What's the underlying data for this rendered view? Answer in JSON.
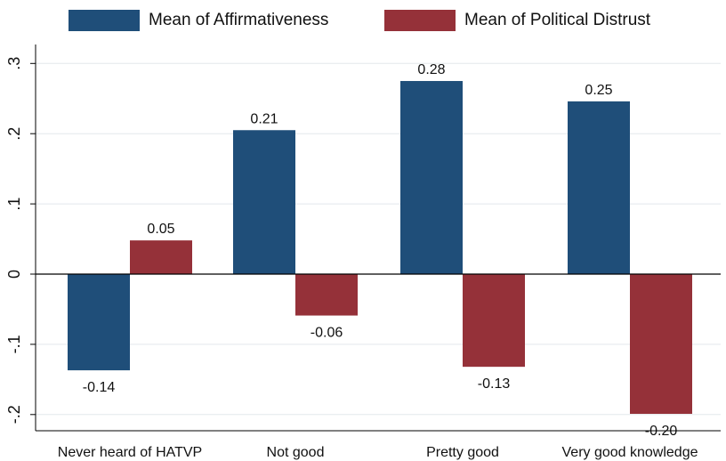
{
  "chart_data": {
    "type": "bar",
    "categories": [
      "Never heard of HATVP",
      "Not good",
      "Pretty good",
      "Very good knowledge"
    ],
    "series": [
      {
        "name": "Mean of Affirmativeness",
        "values": [
          -0.137,
          0.205,
          0.275,
          0.246
        ],
        "labels": [
          "-0.14",
          "0.21",
          "0.28",
          "0.25"
        ],
        "color": "#1f4e79"
      },
      {
        "name": "Mean of Political Distrust",
        "values": [
          0.048,
          -0.059,
          -0.132,
          -0.199
        ],
        "labels": [
          "0.05",
          "-0.06",
          "-0.13",
          "-0.20"
        ],
        "color": "#953139"
      }
    ],
    "ylim": [
      -0.22,
      0.3
    ],
    "yticks": [
      -0.2,
      -0.1,
      0,
      0.1,
      0.2,
      0.3
    ],
    "ytick_labels": [
      "-.2",
      "-.1",
      "0",
      ".1",
      ".2",
      ".3"
    ],
    "grid": true,
    "legend_position": "top",
    "title": "",
    "xlabel": "",
    "ylabel": ""
  }
}
